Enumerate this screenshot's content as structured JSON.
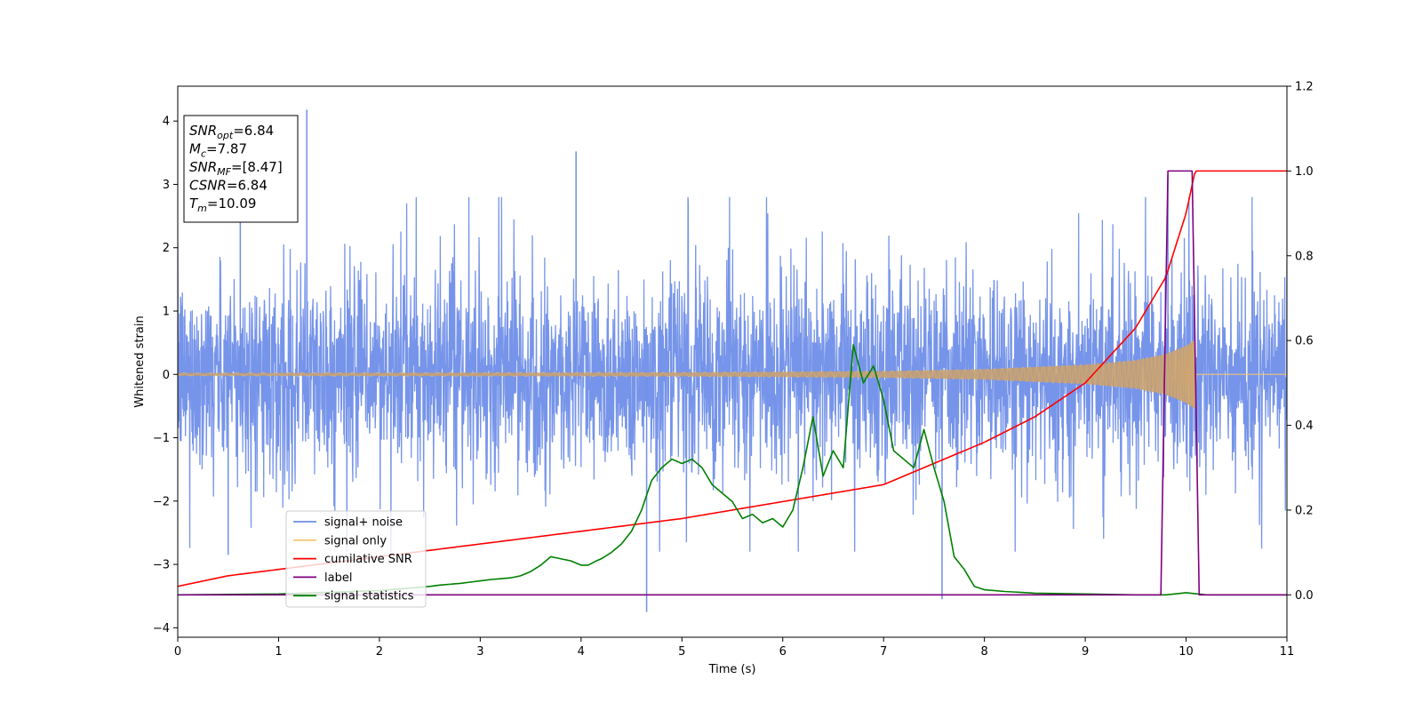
{
  "chart_data": {
    "type": "line",
    "xlabel": "Time (s)",
    "ylabel": "Whitened strain",
    "xlim": [
      0,
      11
    ],
    "ylim_left": [
      -4.15,
      4.55
    ],
    "ylim_right": [
      -0.1,
      1.2
    ],
    "x_ticks": [
      "0",
      "1",
      "2",
      "3",
      "4",
      "5",
      "6",
      "7",
      "8",
      "9",
      "10",
      "11"
    ],
    "y_left_ticks": [
      "−4",
      "−3",
      "−2",
      "−1",
      "0",
      "1",
      "2",
      "3",
      "4"
    ],
    "y_right_ticks": [
      "0.0",
      "0.2",
      "0.4",
      "0.6",
      "0.8",
      "1.0",
      "1.2"
    ],
    "legend": {
      "placement": "lower-left",
      "entries": [
        {
          "label": "signal+ noise",
          "color": "#6f8ee8"
        },
        {
          "label": "signal only",
          "color": "#f5c878"
        },
        {
          "label": "cumilative SNR",
          "color": "#ff0000"
        },
        {
          "label": "label",
          "color": "#800080"
        },
        {
          "label": "signal statistics",
          "color": "#008000"
        }
      ]
    },
    "info_box": {
      "placement": "top-left",
      "lines": [
        {
          "main": "SNR",
          "sub": "opt",
          "value": "=6.84"
        },
        {
          "main": "M",
          "sub": "c",
          "value": "=7.87"
        },
        {
          "main": "SNR",
          "sub": "MF",
          "value": "=[8.47]"
        },
        {
          "main": "CSNR",
          "sub": "",
          "value": "=6.84"
        },
        {
          "main": "T",
          "sub": "m",
          "value": "=10.09"
        }
      ]
    },
    "series": [
      {
        "name": "signal+ noise",
        "axis": "left",
        "color": "#6f8ee8",
        "noise_std": 0.75,
        "peak_range": [
          -2.5,
          2.5
        ],
        "outliers": [
          [
            1.28,
            4.18
          ],
          [
            0.62,
            3.8
          ],
          [
            4.65,
            -3.75
          ],
          [
            7.58,
            -3.55
          ],
          [
            3.95,
            3.52
          ],
          [
            9.82,
            3.15
          ],
          [
            0.5,
            -2.85
          ]
        ]
      },
      {
        "name": "signal only",
        "axis": "left",
        "color": "#f5c878",
        "merger_time": 10.09,
        "envelope": [
          [
            0,
            0.02
          ],
          [
            5,
            0.03
          ],
          [
            7,
            0.05
          ],
          [
            8,
            0.08
          ],
          [
            9,
            0.15
          ],
          [
            9.5,
            0.22
          ],
          [
            9.8,
            0.32
          ],
          [
            10.0,
            0.45
          ],
          [
            10.09,
            0.55
          ],
          [
            10.1,
            0.0
          ],
          [
            11,
            0.0
          ]
        ]
      },
      {
        "name": "cumilative SNR",
        "axis": "right",
        "color": "#ff0000",
        "x": [
          0,
          0.5,
          1,
          2,
          3,
          4,
          5,
          6,
          7,
          8,
          8.5,
          9,
          9.5,
          9.8,
          10.0,
          10.09,
          11
        ],
        "values": [
          0.02,
          0.045,
          0.06,
          0.09,
          0.12,
          0.15,
          0.18,
          0.22,
          0.26,
          0.36,
          0.42,
          0.5,
          0.63,
          0.75,
          0.9,
          1.0,
          1.0
        ]
      },
      {
        "name": "label",
        "axis": "right",
        "color": "#800080",
        "x": [
          0,
          9.75,
          9.82,
          10.06,
          10.13,
          11
        ],
        "values": [
          0,
          0,
          1,
          1,
          0,
          0
        ]
      },
      {
        "name": "signal statistics",
        "axis": "right",
        "color": "#008000",
        "x": [
          0,
          1,
          2,
          2.5,
          2.6,
          2.7,
          2.8,
          2.9,
          3.0,
          3.1,
          3.2,
          3.3,
          3.4,
          3.5,
          3.6,
          3.7,
          3.8,
          3.9,
          4.0,
          4.07,
          4.15,
          4.2,
          4.3,
          4.4,
          4.5,
          4.6,
          4.7,
          4.8,
          4.9,
          5.0,
          5.1,
          5.2,
          5.3,
          5.4,
          5.5,
          5.6,
          5.7,
          5.8,
          5.9,
          6.0,
          6.1,
          6.2,
          6.3,
          6.4,
          6.5,
          6.6,
          6.7,
          6.8,
          6.9,
          7.0,
          7.1,
          7.2,
          7.3,
          7.4,
          7.5,
          7.6,
          7.7,
          7.8,
          7.9,
          8.0,
          8.2,
          8.5,
          9.0,
          9.5,
          9.8,
          10.0,
          10.2,
          11
        ],
        "values": [
          0.0,
          0.002,
          0.01,
          0.02,
          0.023,
          0.025,
          0.027,
          0.03,
          0.033,
          0.036,
          0.038,
          0.04,
          0.045,
          0.055,
          0.07,
          0.09,
          0.085,
          0.08,
          0.07,
          0.07,
          0.08,
          0.085,
          0.1,
          0.12,
          0.15,
          0.2,
          0.27,
          0.3,
          0.32,
          0.31,
          0.32,
          0.3,
          0.26,
          0.24,
          0.22,
          0.18,
          0.19,
          0.17,
          0.18,
          0.16,
          0.2,
          0.3,
          0.42,
          0.28,
          0.34,
          0.3,
          0.59,
          0.5,
          0.54,
          0.46,
          0.34,
          0.32,
          0.3,
          0.39,
          0.3,
          0.22,
          0.09,
          0.06,
          0.02,
          0.012,
          0.008,
          0.004,
          0.002,
          0.0,
          0.0,
          0.005,
          0.0,
          0.0
        ]
      }
    ]
  }
}
